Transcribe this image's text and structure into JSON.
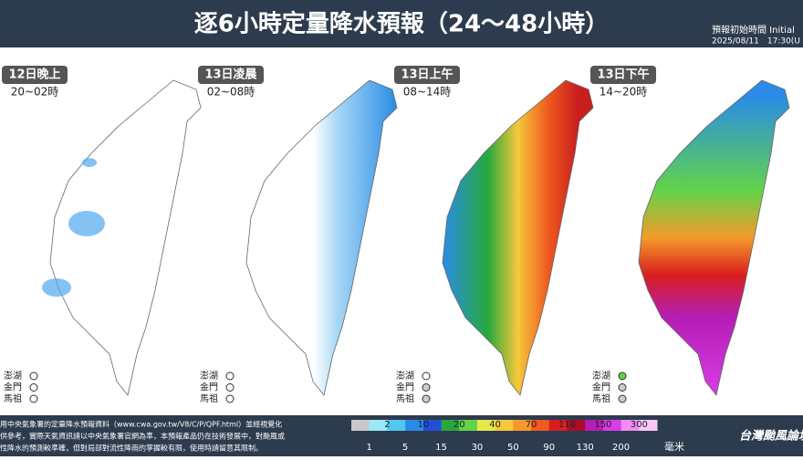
{
  "header": {
    "title": "逐6小時定量降水預報（24～48小時）",
    "init_label": "預報初始時間 Initial",
    "init_time": "2025/08/11　17:30(U"
  },
  "panels": [
    {
      "date": "12日晚上",
      "hours": "20~02時"
    },
    {
      "date": "13日凌晨",
      "hours": "02~08時"
    },
    {
      "date": "13日上午",
      "hours": "08~14時"
    },
    {
      "date": "13日下午",
      "hours": "14~20時"
    }
  ],
  "islands": [
    "澎湖",
    "金門",
    "馬祖"
  ],
  "footer": {
    "notes": [
      "用中央氣象署的定量降水預報資料（www.cwa.gov.tw/V8/C/P/QPF.html）並經視覺化",
      "供參考，實際天氣資訊請以中央氣象署官網為準，本預報產品仍在技術發展中，對颱風或",
      "性降水的預測較準確，但對局部對流性降雨的掌握較有限，使用時請留意其限制。"
    ]
  },
  "legend": {
    "top_labels": [
      "2",
      "10",
      "20",
      "40",
      "70",
      "110",
      "150",
      "300"
    ],
    "bottom_labels": [
      "1",
      "5",
      "15",
      "30",
      "50",
      "90",
      "130",
      "200"
    ],
    "unit": "毫米",
    "colors": [
      "#c8c8c8",
      "#9be8f5",
      "#50c8f0",
      "#2a8ce6",
      "#1f4fd6",
      "#27a83c",
      "#62d34a",
      "#e8e84a",
      "#f5c83a",
      "#f59a2a",
      "#ef5a1e",
      "#d81e1e",
      "#a80e2a",
      "#b41eb4",
      "#d83ce6",
      "#f08cf5",
      "#f8c8f8"
    ]
  },
  "logo": "台灣颱風論壇"
}
